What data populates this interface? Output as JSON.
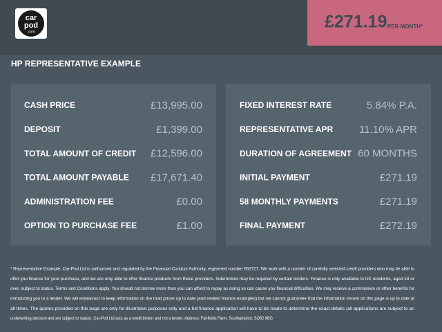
{
  "logo": {
    "line1": "car",
    "line2": "pod",
    "line3": ".com"
  },
  "price": {
    "amount": "£271.19",
    "period": "PER MONTH*"
  },
  "title": "HP REPRESENTATIVE EXAMPLE",
  "left_rows": [
    {
      "label": "CASH PRICE",
      "value": "£13,995.00"
    },
    {
      "label": "DEPOSIT",
      "value": "£1,399.00"
    },
    {
      "label": "TOTAL AMOUNT OF CREDIT",
      "value": "£12,596.00"
    },
    {
      "label": "TOTAL AMOUNT PAYABLE",
      "value": "£17,671.40"
    },
    {
      "label": "ADMINISTRATION FEE",
      "value": "£0.00"
    },
    {
      "label": "OPTION TO PURCHASE FEE",
      "value": "£1.00"
    }
  ],
  "right_rows": [
    {
      "label": "FIXED INTEREST RATE",
      "value": "5.84% P.A."
    },
    {
      "label": "REPRESENTATIVE APR",
      "value": "11.10% APR"
    },
    {
      "label": "DURATION OF AGREEMENT",
      "value": "60 MONTHS"
    },
    {
      "label": "INITIAL PAYMENT",
      "value": "£271.19"
    },
    {
      "label": "58 MONTHLY PAYMENTS",
      "value": "£271.19"
    },
    {
      "label": "FINAL PAYMENT",
      "value": "£272.19"
    }
  ],
  "footer": [
    "* Representative Example. Car-Pod Ltd is authorised and regulated by the Financial Conduct Authority, registered number 652727. We work with a number of carefully selected credit providers who may be able to",
    "offer you finance for your purchase, and we are only able to offer finance products from these providers. Indemnities may be required by certain lenders. Finance is only available to UK residents, aged 18 or",
    "over, subject to status. Terms and Conditions apply. You should not borrow more than you can afford to repay as doing so can cause you financial difficulties. We may receive a commission or other benefits for",
    "introducing you to a lender. We will endeavour to keep information on the road prices up to date (and related finance examples) but we cannot guarantee that the information shown on this page is up to date at",
    "all times. The quotes provided on this page are only for illustrative purposes only and a full finance application will have to be made to determine the exact details (all applications are subject to an",
    "underwriting decision and are subject to status). Car-Pod Ltd acts as a credit broker and not a lender. Address: Fairfields Farm, Southampton, SO52 9BG"
  ]
}
